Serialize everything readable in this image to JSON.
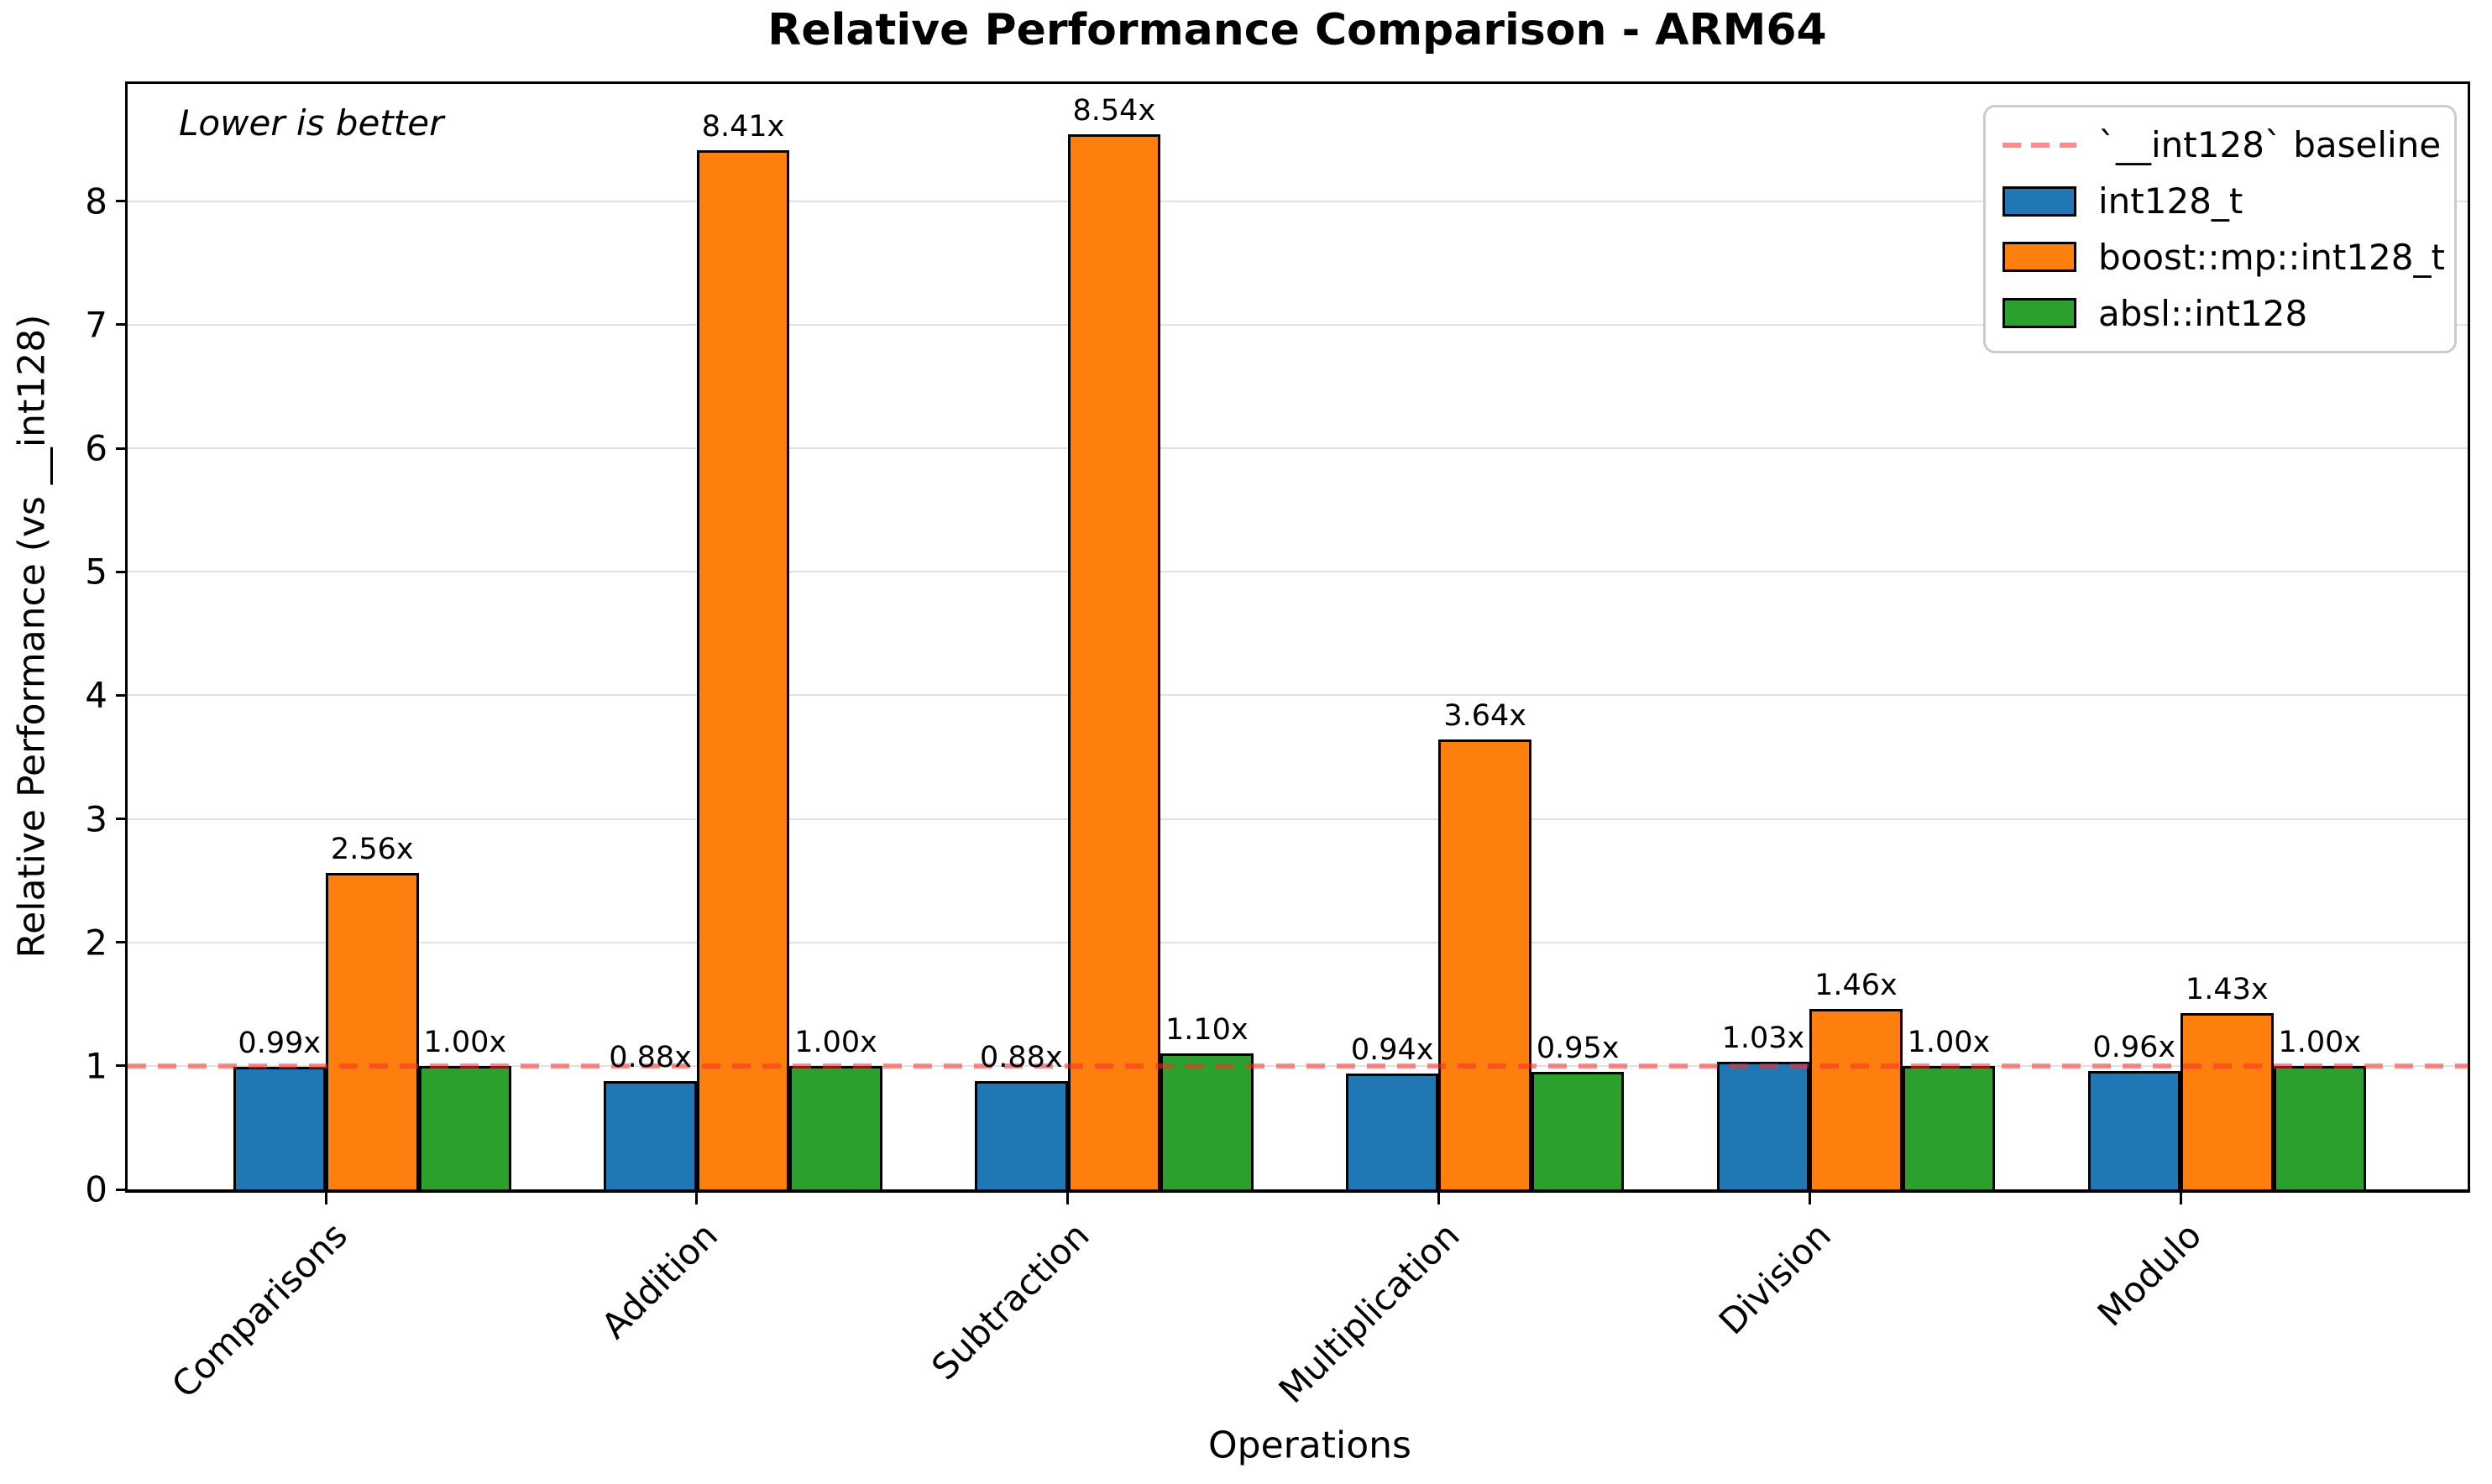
{
  "chart_data": {
    "type": "bar",
    "title": "Relative Performance Comparison - ARM64",
    "xlabel": "Operations",
    "ylabel": "Relative Performance (vs __int128)",
    "annotation": "Lower is better",
    "categories": [
      "Comparisons",
      "Addition",
      "Subtraction",
      "Multiplication",
      "Division",
      "Modulo"
    ],
    "series": [
      {
        "name": "int128_t",
        "color": "#1f77b4",
        "values": [
          0.99,
          0.88,
          0.88,
          0.94,
          1.03,
          0.96
        ]
      },
      {
        "name": "boost::mp::int128_t",
        "color": "#ff7f0e",
        "values": [
          2.56,
          8.41,
          8.54,
          3.64,
          1.46,
          1.43
        ]
      },
      {
        "name": "absl::int128",
        "color": "#2ca02c",
        "values": [
          1.0,
          1.0,
          1.1,
          0.95,
          1.0,
          1.0
        ]
      }
    ],
    "value_suffix": "x",
    "baseline": {
      "value": 1.0,
      "label": "`__int128` baseline",
      "color": "255,43,43",
      "opacity": 0.55,
      "style": "dashed"
    },
    "ylim": [
      0,
      8.95
    ],
    "yticks": [
      0,
      1,
      2,
      3,
      4,
      5,
      6,
      7,
      8
    ],
    "grid": true,
    "legend_position": "upper right",
    "bar_edge_color": "#000000"
  }
}
